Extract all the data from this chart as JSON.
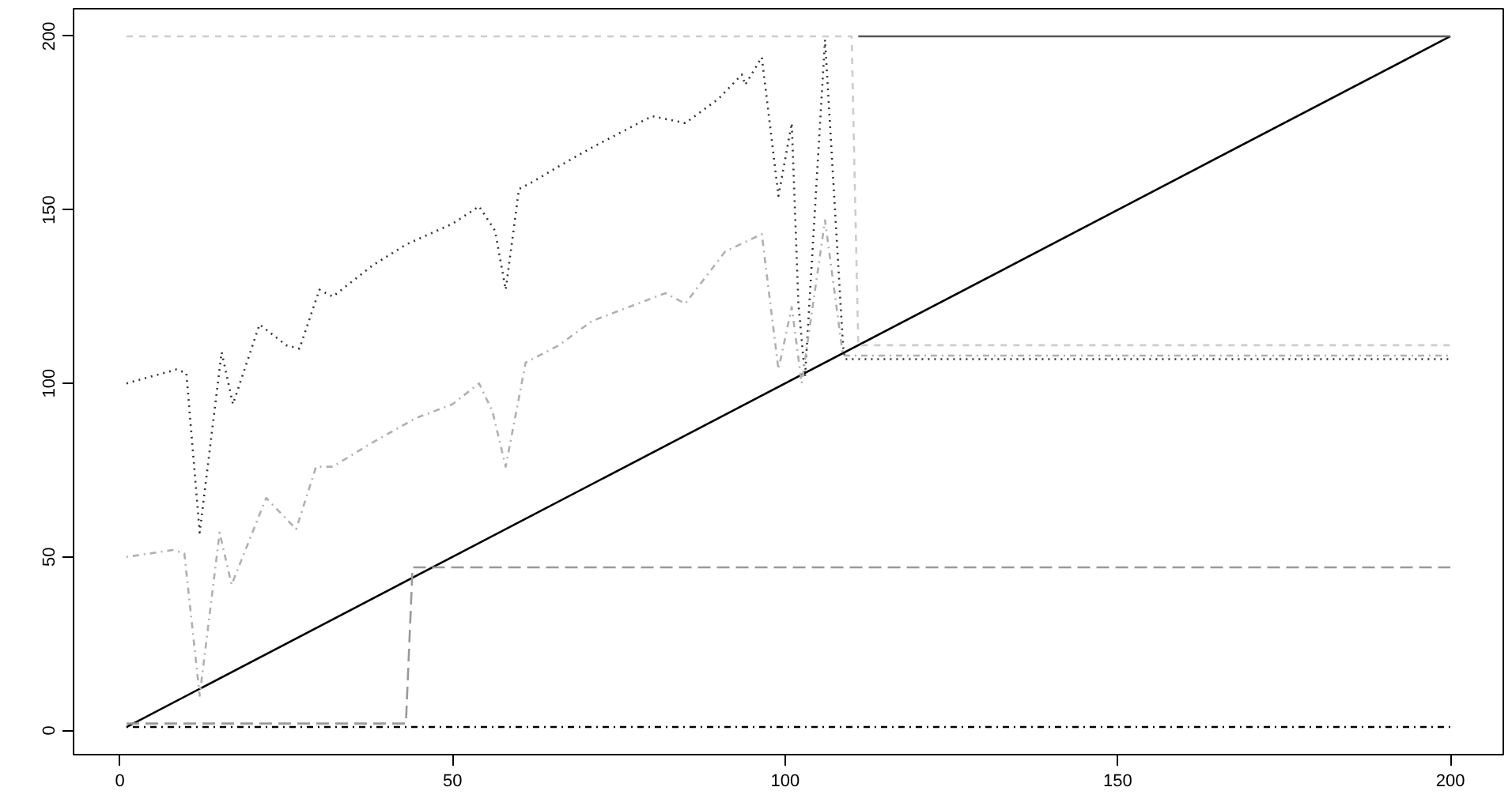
{
  "chart_data": {
    "type": "line",
    "xlim": [
      -6.96,
      207.96
    ],
    "ylim": [
      -6.96,
      207.96
    ],
    "xticks": [
      0,
      50,
      100,
      150,
      200
    ],
    "yticks": [
      0,
      50,
      100,
      150,
      200
    ],
    "grid": false,
    "series": [
      {
        "color": "#000000",
        "line_style": "solid",
        "x": [
          1,
          200
        ],
        "values": [
          1,
          200
        ]
      },
      {
        "color": "#555555",
        "line_style": "solid",
        "x": [
          111,
          200
        ],
        "values": [
          200,
          200
        ]
      },
      {
        "color": "#cccccc",
        "line_style": "dashed",
        "x": [
          1,
          110,
          111,
          200
        ],
        "values": [
          200,
          200,
          111,
          111
        ]
      },
      {
        "color": "#333333",
        "line_style": "dotted",
        "x": [
          1,
          8.5,
          10,
          12,
          15.3,
          17,
          21,
          25,
          27,
          30,
          32,
          38,
          43,
          50,
          54,
          56.4,
          58,
          60,
          62,
          65.5,
          71,
          80,
          85,
          90,
          93.5,
          94,
          96.5,
          99,
          101,
          102,
          103,
          106,
          108.7,
          109,
          200
        ],
        "values": [
          100,
          104,
          103,
          57,
          109,
          94,
          117,
          111,
          110,
          127,
          125,
          134,
          140,
          146,
          151,
          144,
          127,
          156,
          158,
          162,
          168,
          177,
          175,
          182,
          189,
          186,
          194,
          154,
          175,
          123,
          102,
          199,
          111,
          107,
          107
        ]
      },
      {
        "color": "#b0b0b0",
        "line_style": "dashdot",
        "x": [
          1,
          8,
          9.7,
          12,
          15,
          16.8,
          22,
          26.5,
          29.5,
          32,
          38,
          44.5,
          50,
          54,
          56,
          58,
          61,
          66,
          71,
          82,
          85,
          91,
          96.5,
          99,
          101,
          102.5,
          106,
          108.7,
          200
        ],
        "values": [
          50,
          52,
          51,
          10,
          57,
          42,
          67,
          58,
          76,
          76,
          83,
          90,
          94,
          100,
          92,
          76,
          106,
          111,
          118,
          126,
          123,
          138,
          143,
          104,
          122,
          100,
          147,
          108,
          108
        ]
      },
      {
        "color": "#999999",
        "line_style": "longdash",
        "x": [
          1,
          43,
          44,
          200
        ],
        "values": [
          2,
          2,
          47,
          47
        ]
      },
      {
        "color": "#000000",
        "line_style": "dashdot",
        "x": [
          1,
          200
        ],
        "values": [
          1,
          1
        ]
      }
    ]
  }
}
